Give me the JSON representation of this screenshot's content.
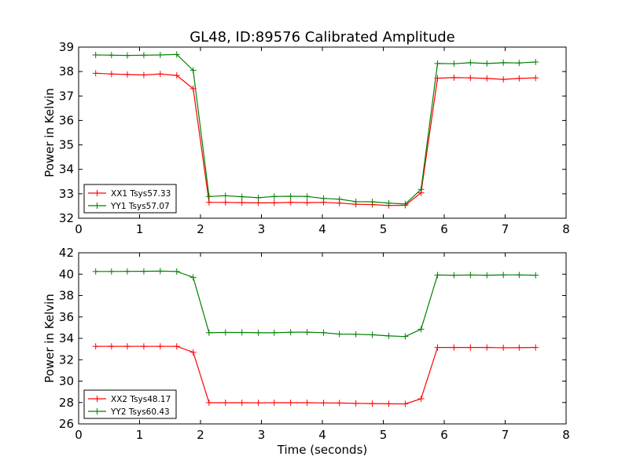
{
  "figure": {
    "title": "GL48, ID:89576 Calibrated Amplitude"
  },
  "chart_data": [
    {
      "type": "line",
      "title": "GL48, ID:89576 Calibrated Amplitude",
      "xlabel": "",
      "ylabel": "Power in Kelvin",
      "xlim": [
        0,
        8
      ],
      "ylim": [
        32,
        39
      ],
      "xticks": [
        0,
        1,
        2,
        3,
        4,
        5,
        6,
        7,
        8
      ],
      "yticks": [
        32,
        33,
        34,
        35,
        36,
        37,
        38,
        39
      ],
      "x": [
        0.28,
        0.54,
        0.8,
        1.07,
        1.34,
        1.61,
        1.88,
        2.14,
        2.41,
        2.68,
        2.95,
        3.21,
        3.48,
        3.75,
        4.02,
        4.28,
        4.55,
        4.82,
        5.09,
        5.36,
        5.62,
        5.89,
        6.16,
        6.43,
        6.7,
        6.97,
        7.23,
        7.5
      ],
      "series": [
        {
          "name": "XX1 Tsys57.33",
          "color": "#ff0000",
          "values": [
            37.93,
            37.9,
            37.88,
            37.86,
            37.9,
            37.84,
            37.3,
            32.65,
            32.65,
            32.64,
            32.63,
            32.63,
            32.65,
            32.64,
            32.65,
            32.62,
            32.57,
            32.56,
            32.52,
            32.53,
            33.04,
            37.73,
            37.75,
            37.74,
            37.72,
            37.68,
            37.72,
            37.74
          ]
        },
        {
          "name": "YY1 Tsys57.07",
          "color": "#008000",
          "values": [
            38.68,
            38.67,
            38.66,
            38.67,
            38.68,
            38.7,
            38.05,
            32.89,
            32.92,
            32.88,
            32.84,
            32.89,
            32.9,
            32.89,
            32.81,
            32.78,
            32.68,
            32.67,
            32.62,
            32.58,
            33.18,
            38.33,
            38.32,
            38.36,
            38.33,
            38.36,
            38.35,
            38.39
          ]
        }
      ],
      "legend": "lower-left"
    },
    {
      "type": "line",
      "title": "",
      "xlabel": "Time (seconds)",
      "ylabel": "Power in Kelvin",
      "xlim": [
        0,
        8
      ],
      "ylim": [
        26,
        42
      ],
      "xticks": [
        0,
        1,
        2,
        3,
        4,
        5,
        6,
        7,
        8
      ],
      "yticks": [
        26,
        28,
        30,
        32,
        34,
        36,
        38,
        40,
        42
      ],
      "x": [
        0.28,
        0.54,
        0.8,
        1.07,
        1.34,
        1.61,
        1.88,
        2.14,
        2.41,
        2.68,
        2.95,
        3.21,
        3.48,
        3.75,
        4.02,
        4.28,
        4.55,
        4.82,
        5.09,
        5.36,
        5.62,
        5.89,
        6.16,
        6.43,
        6.7,
        6.97,
        7.23,
        7.5
      ],
      "series": [
        {
          "name": "XX2 Tsys48.17",
          "color": "#ff0000",
          "values": [
            33.25,
            33.25,
            33.25,
            33.25,
            33.25,
            33.25,
            32.7,
            27.98,
            27.98,
            27.98,
            27.97,
            27.98,
            27.98,
            27.98,
            27.96,
            27.95,
            27.92,
            27.9,
            27.88,
            27.87,
            28.35,
            33.15,
            33.15,
            33.15,
            33.15,
            33.12,
            33.13,
            33.15
          ]
        },
        {
          "name": "YY2 Tsys60.43",
          "color": "#008000",
          "values": [
            40.25,
            40.25,
            40.26,
            40.27,
            40.28,
            40.25,
            39.7,
            34.52,
            34.55,
            34.55,
            34.52,
            34.52,
            34.57,
            34.58,
            34.53,
            34.4,
            34.38,
            34.33,
            34.23,
            34.17,
            34.85,
            39.92,
            39.9,
            39.92,
            39.9,
            39.93,
            39.93,
            39.9
          ]
        }
      ],
      "legend": "lower-left"
    }
  ]
}
